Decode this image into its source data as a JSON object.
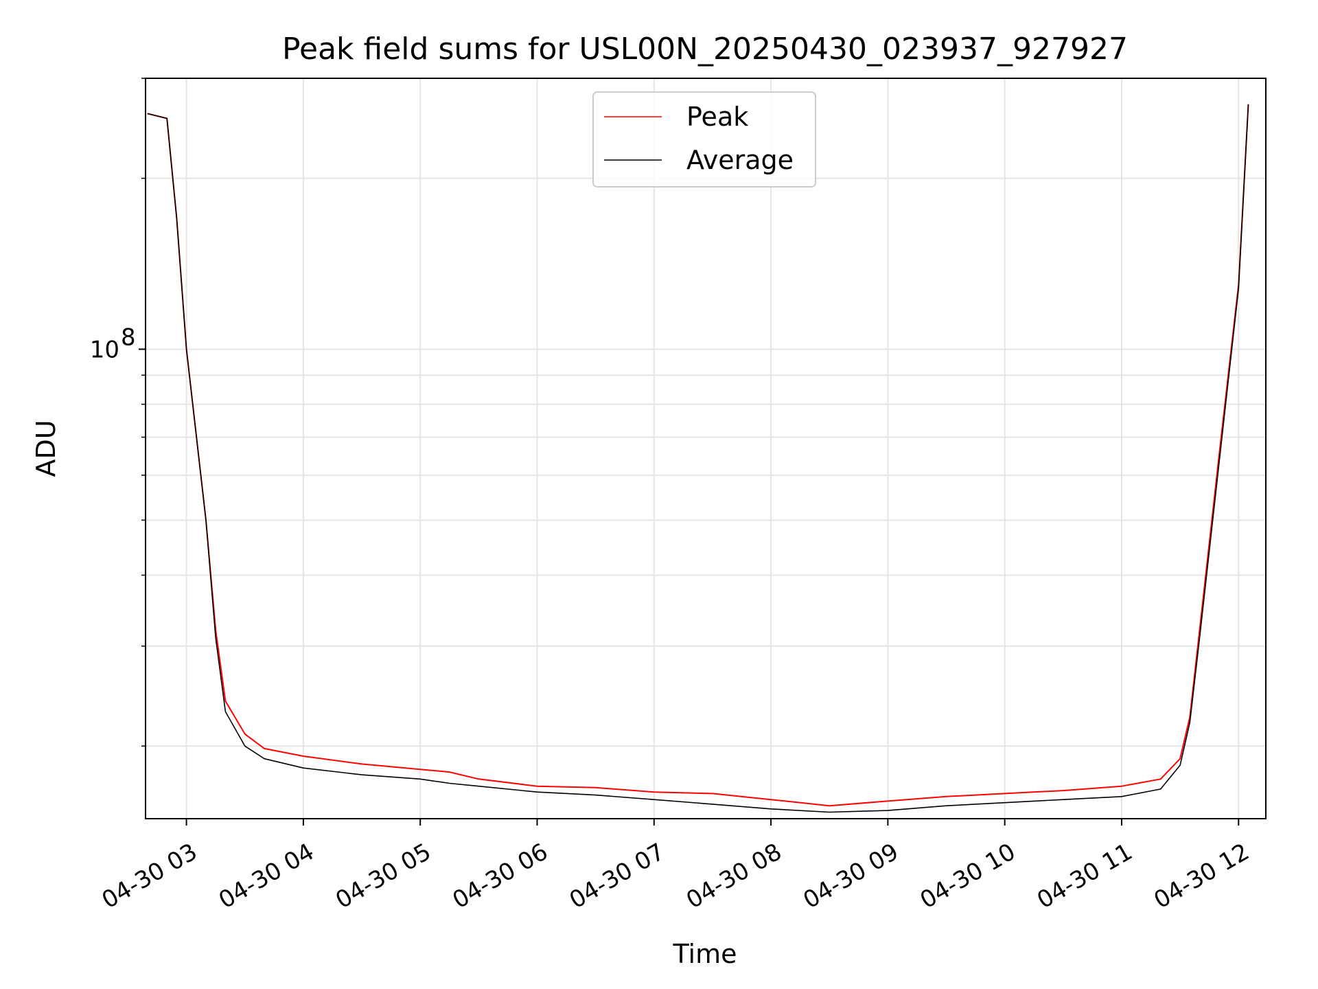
{
  "chart_data": {
    "type": "line",
    "title": "Peak field sums for USL00N_20250430_023937_927927",
    "xlabel": "Time",
    "ylabel": "ADU",
    "yscale": "log",
    "grid": true,
    "legend_position": "upper center",
    "x_tick_labels": [
      "04-30 03",
      "04-30 04",
      "04-30 05",
      "04-30 06",
      "04-30 07",
      "04-30 08",
      "04-30 09",
      "04-30 10",
      "04-30 11",
      "04-30 12"
    ],
    "y_tick_label": {
      "base": "10",
      "exponent": "8"
    },
    "xlim": [
      "2025-04-30 02:39",
      "2025-04-30 12:14"
    ],
    "ylim": [
      14900000,
      300000000
    ],
    "colors": {
      "Peak": "#ff0000",
      "Average": "#000000"
    },
    "series": [
      {
        "name": "Peak",
        "x": [
          "2025-04-30 02:40",
          "2025-04-30 02:50",
          "2025-04-30 02:55",
          "2025-04-30 03:00",
          "2025-04-30 03:10",
          "2025-04-30 03:15",
          "2025-04-30 03:20",
          "2025-04-30 03:30",
          "2025-04-30 03:40",
          "2025-04-30 04:00",
          "2025-04-30 04:30",
          "2025-04-30 05:00",
          "2025-04-30 05:15",
          "2025-04-30 05:30",
          "2025-04-30 06:00",
          "2025-04-30 06:30",
          "2025-04-30 07:00",
          "2025-04-30 07:30",
          "2025-04-30 08:00",
          "2025-04-30 08:30",
          "2025-04-30 09:00",
          "2025-04-30 09:30",
          "2025-04-30 10:00",
          "2025-04-30 10:30",
          "2025-04-30 11:00",
          "2025-04-30 11:20",
          "2025-04-30 11:30",
          "2025-04-30 11:35",
          "2025-04-30 11:40",
          "2025-04-30 11:50",
          "2025-04-30 12:00",
          "2025-04-30 12:05"
        ],
        "y": [
          260000000,
          255000000,
          170000000,
          100000000,
          50000000,
          32000000,
          24000000,
          21000000,
          19800000,
          19200000,
          18600000,
          18200000,
          18000000,
          17500000,
          17000000,
          16900000,
          16600000,
          16500000,
          16100000,
          15700000,
          16000000,
          16300000,
          16500000,
          16700000,
          17000000,
          17500000,
          19000000,
          22500000,
          32000000,
          65000000,
          130000000,
          270000000
        ]
      },
      {
        "name": "Average",
        "x": [
          "2025-04-30 02:40",
          "2025-04-30 02:50",
          "2025-04-30 02:55",
          "2025-04-30 03:00",
          "2025-04-30 03:10",
          "2025-04-30 03:15",
          "2025-04-30 03:20",
          "2025-04-30 03:30",
          "2025-04-30 03:40",
          "2025-04-30 04:00",
          "2025-04-30 04:30",
          "2025-04-30 05:00",
          "2025-04-30 05:15",
          "2025-04-30 05:30",
          "2025-04-30 06:00",
          "2025-04-30 06:30",
          "2025-04-30 07:00",
          "2025-04-30 07:30",
          "2025-04-30 08:00",
          "2025-04-30 08:30",
          "2025-04-30 09:00",
          "2025-04-30 09:30",
          "2025-04-30 10:00",
          "2025-04-30 10:30",
          "2025-04-30 11:00",
          "2025-04-30 11:20",
          "2025-04-30 11:30",
          "2025-04-30 11:35",
          "2025-04-30 11:40",
          "2025-04-30 11:50",
          "2025-04-30 12:00",
          "2025-04-30 12:05"
        ],
        "y": [
          260000000,
          255000000,
          170000000,
          100000000,
          50000000,
          31000000,
          23000000,
          20000000,
          19000000,
          18300000,
          17800000,
          17500000,
          17200000,
          17000000,
          16600000,
          16400000,
          16100000,
          15800000,
          15500000,
          15300000,
          15400000,
          15700000,
          15900000,
          16100000,
          16300000,
          16800000,
          18500000,
          22000000,
          31000000,
          63000000,
          128000000,
          270000000
        ]
      }
    ]
  }
}
